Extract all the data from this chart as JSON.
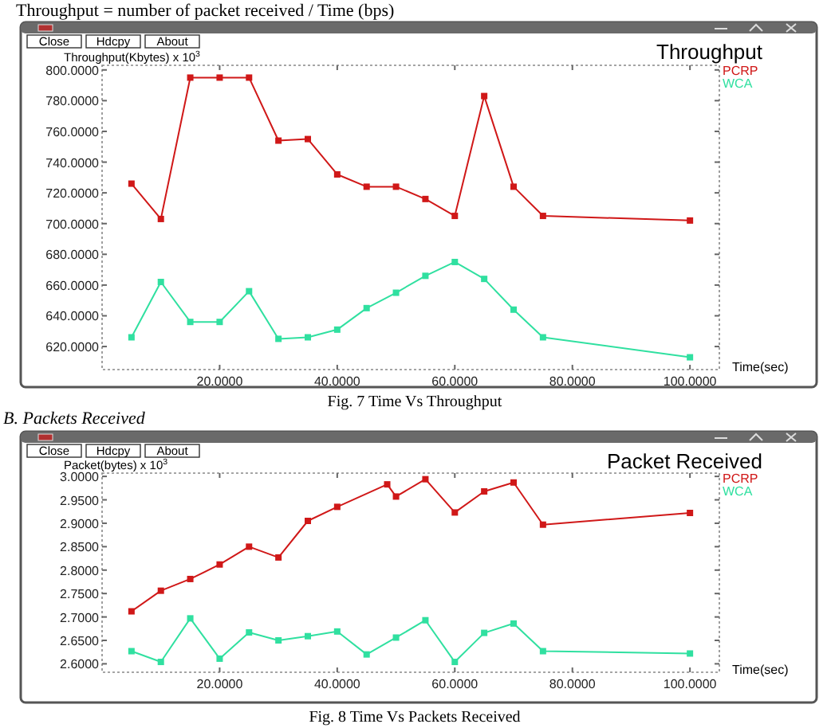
{
  "chart_data": [
    {
      "type": "line",
      "title": "Throughput",
      "xlabel": "Time(sec)",
      "ylabel": "Throughput(Kbytes) x 10$^{3}$",
      "annotations": [
        "Throughput = number of packet received / Time (bps)",
        "Close",
        "Hdcpy",
        "About",
        "Fig. 7 Time Vs Throughput"
      ],
      "x": [
        5,
        10,
        15,
        20,
        25,
        30,
        35,
        40,
        45,
        50,
        55,
        60,
        65,
        70,
        75,
        100
      ],
      "series": [
        {
          "name": "PCRP",
          "color": "#d01818",
          "values": [
            726,
            703,
            795,
            795,
            795,
            754,
            755,
            732,
            724,
            724,
            716,
            705,
            783,
            724,
            705,
            702
          ]
        },
        {
          "name": "WCA",
          "color": "#30e0a0",
          "values": [
            626,
            662,
            636,
            636,
            656,
            625,
            626,
            631,
            645,
            655,
            666,
            675,
            664,
            644,
            626,
            613
          ]
        }
      ],
      "xlim": [
        0,
        105
      ],
      "ylim": [
        605,
        803
      ],
      "xticks": [
        {
          "value": 20,
          "label": "20.0000"
        },
        {
          "value": 40,
          "label": "40.0000"
        },
        {
          "value": 60,
          "label": "60.0000"
        },
        {
          "value": 80,
          "label": "80.0000"
        },
        {
          "value": 100,
          "label": "100.0000"
        }
      ],
      "yticks": [
        {
          "value": 620,
          "label": "620.0000"
        },
        {
          "value": 640,
          "label": "640.0000"
        },
        {
          "value": 660,
          "label": "660.0000"
        },
        {
          "value": 680,
          "label": "680.0000"
        },
        {
          "value": 700,
          "label": "700.0000"
        },
        {
          "value": 720,
          "label": "720.0000"
        },
        {
          "value": 740,
          "label": "740.0000"
        },
        {
          "value": 760,
          "label": "760.0000"
        },
        {
          "value": 780,
          "label": "780.0000"
        },
        {
          "value": 800,
          "label": "800.0000"
        }
      ],
      "grid": false,
      "legend": "top right",
      "marker": "square",
      "line_style": "solid"
    },
    {
      "type": "line",
      "title": "Packet Received",
      "xlabel": "Time(sec)",
      "ylabel": "Packet(bytes) x 10$^{3}$",
      "annotations": [
        "B.  Packets Received",
        "Close",
        "Hdcpy",
        "About",
        "Fig. 8 Time Vs Packets Received"
      ],
      "series": [
        {
          "name": "PCRP",
          "color": "#d01818",
          "x": [
            5,
            10,
            15,
            20,
            25,
            30,
            35,
            40,
            48.5,
            50,
            55,
            60,
            65,
            70,
            75,
            100
          ],
          "values": [
            2.712,
            2.756,
            2.781,
            2.812,
            2.85,
            2.827,
            2.905,
            2.935,
            2.983,
            2.957,
            2.994,
            2.923,
            2.968,
            2.987,
            2.897,
            2.922
          ]
        },
        {
          "name": "WCA",
          "color": "#30e0a0",
          "x": [
            5,
            10,
            15,
            20,
            25,
            30,
            35,
            40,
            45,
            50,
            55,
            60,
            65,
            70,
            75,
            100
          ],
          "values": [
            2.627,
            2.604,
            2.697,
            2.611,
            2.667,
            2.65,
            2.659,
            2.669,
            2.62,
            2.656,
            2.693,
            2.604,
            2.666,
            2.686,
            2.627,
            2.622
          ]
        }
      ],
      "xlim": [
        0,
        105
      ],
      "ylim": [
        2.582,
        3.007
      ],
      "xticks": [
        {
          "value": 20,
          "label": "20.0000"
        },
        {
          "value": 40,
          "label": "40.0000"
        },
        {
          "value": 60,
          "label": "60.0000"
        },
        {
          "value": 80,
          "label": "80.0000"
        },
        {
          "value": 100,
          "label": "100.0000"
        }
      ],
      "yticks": [
        {
          "value": 2.6,
          "label": "2.6000"
        },
        {
          "value": 2.65,
          "label": "2.6500"
        },
        {
          "value": 2.7,
          "label": "2.7000"
        },
        {
          "value": 2.75,
          "label": "2.7500"
        },
        {
          "value": 2.8,
          "label": "2.8000"
        },
        {
          "value": 2.85,
          "label": "2.8500"
        },
        {
          "value": 2.9,
          "label": "2.9000"
        },
        {
          "value": 2.95,
          "label": "2.9500"
        },
        {
          "value": 3.0,
          "label": "3.0000"
        }
      ],
      "grid": false,
      "legend": "top right",
      "marker": "square",
      "line_style": "solid"
    }
  ]
}
